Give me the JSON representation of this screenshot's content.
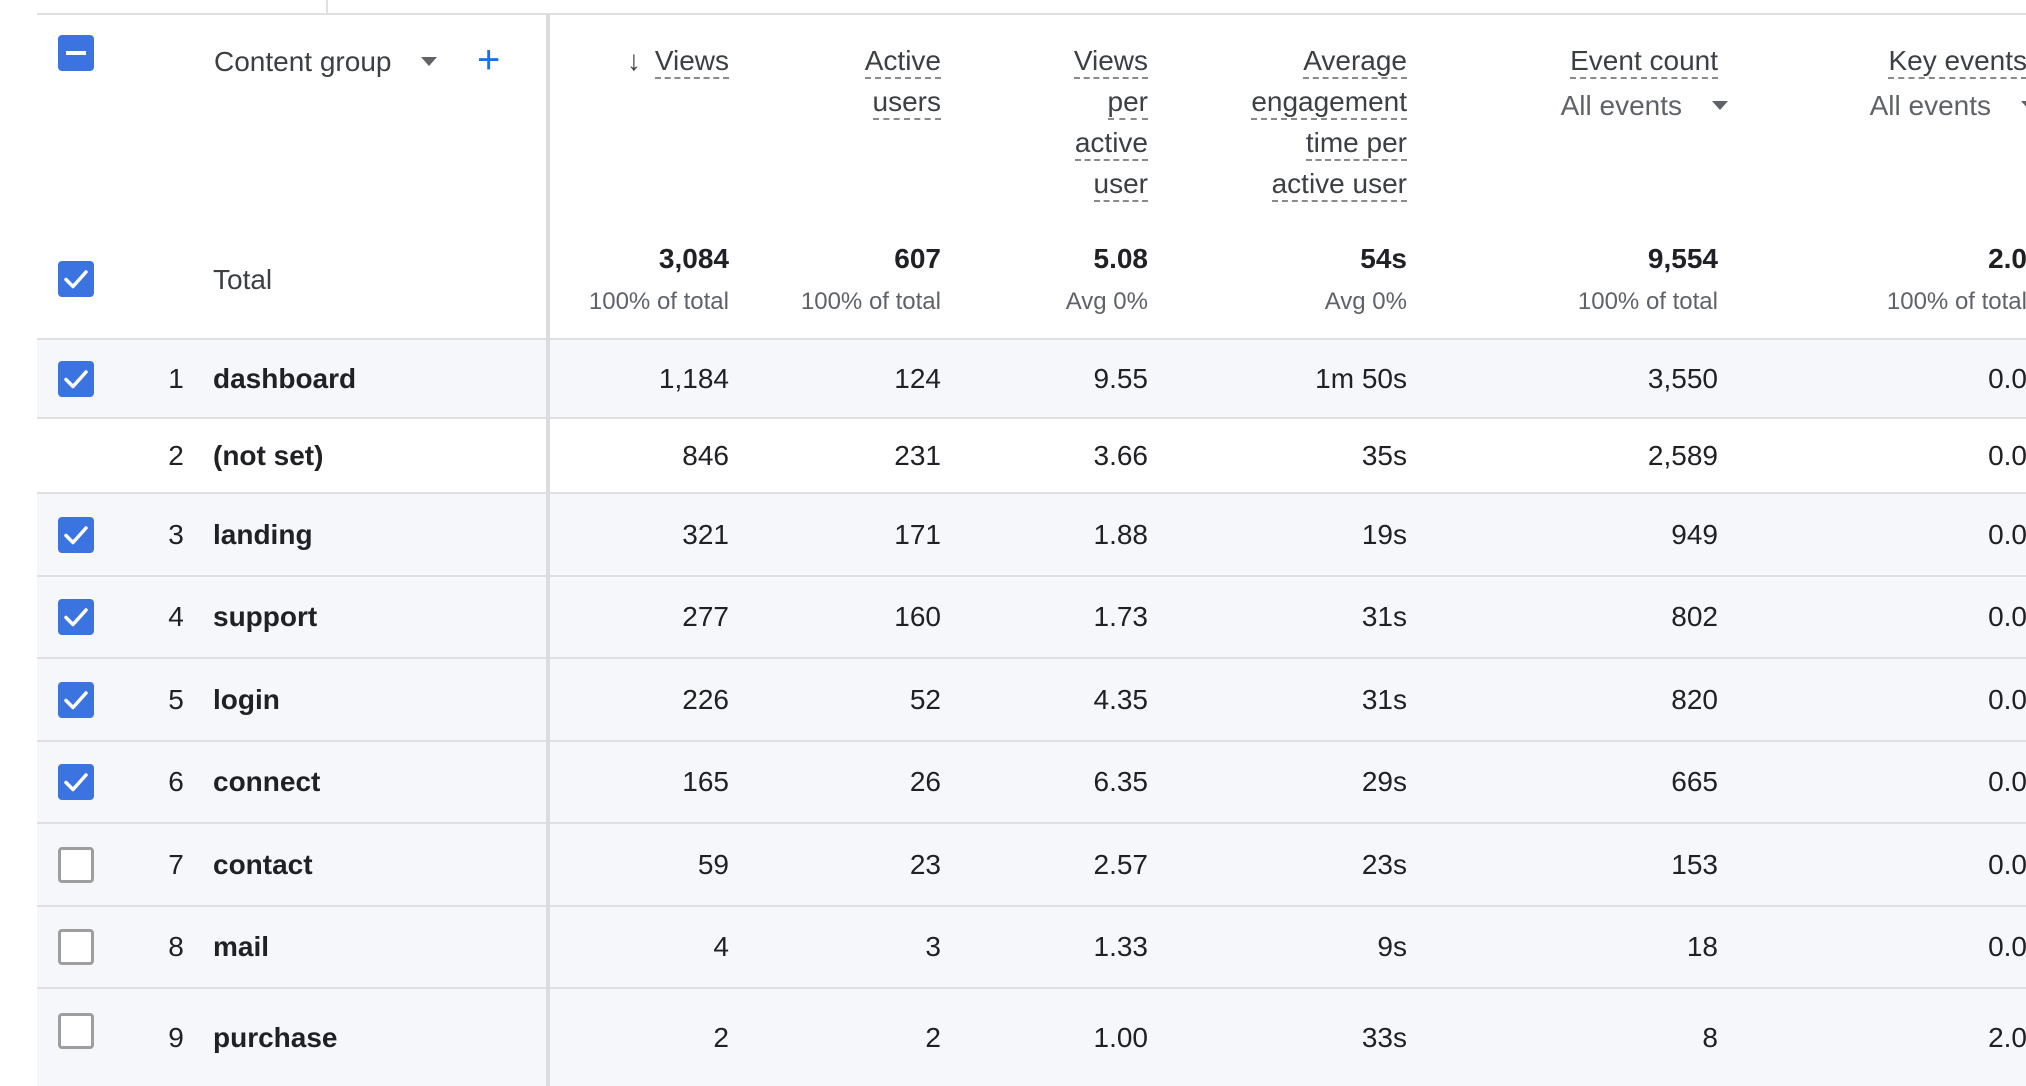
{
  "header": {
    "dimension_label": "Content group",
    "add_label": "+",
    "columns": [
      {
        "lines": [
          "Views"
        ],
        "sort_arrow": "↓"
      },
      {
        "lines": [
          "Active",
          "users"
        ]
      },
      {
        "lines": [
          "Views",
          "per",
          "active",
          "user"
        ]
      },
      {
        "lines": [
          "Average",
          "engagement",
          "time per",
          "active user"
        ]
      },
      {
        "lines": [
          "Event count"
        ],
        "sub": "All events"
      },
      {
        "lines": [
          "Key events"
        ],
        "sub": "All events"
      }
    ]
  },
  "total": {
    "label": "Total",
    "values": [
      "3,084",
      "607",
      "5.08",
      "54s",
      "9,554",
      "2.0"
    ],
    "subs": [
      "100% of total",
      "100% of total",
      "Avg 0%",
      "Avg 0%",
      "100% of total",
      "100% of total"
    ]
  },
  "rows": [
    {
      "rank": "1",
      "name": "dashboard",
      "checked": true,
      "values": [
        "1,184",
        "124",
        "9.55",
        "1m 50s",
        "3,550",
        "0.0"
      ]
    },
    {
      "rank": "2",
      "name": "(not set)",
      "checked": null,
      "values": [
        "846",
        "231",
        "3.66",
        "35s",
        "2,589",
        "0.0"
      ]
    },
    {
      "rank": "3",
      "name": "landing",
      "checked": true,
      "values": [
        "321",
        "171",
        "1.88",
        "19s",
        "949",
        "0.0"
      ]
    },
    {
      "rank": "4",
      "name": "support",
      "checked": true,
      "values": [
        "277",
        "160",
        "1.73",
        "31s",
        "802",
        "0.0"
      ]
    },
    {
      "rank": "5",
      "name": "login",
      "checked": true,
      "values": [
        "226",
        "52",
        "4.35",
        "31s",
        "820",
        "0.0"
      ]
    },
    {
      "rank": "6",
      "name": "connect",
      "checked": true,
      "values": [
        "165",
        "26",
        "6.35",
        "29s",
        "665",
        "0.0"
      ]
    },
    {
      "rank": "7",
      "name": "contact",
      "checked": false,
      "values": [
        "59",
        "23",
        "2.57",
        "23s",
        "153",
        "0.0"
      ]
    },
    {
      "rank": "8",
      "name": "mail",
      "checked": false,
      "values": [
        "4",
        "3",
        "1.33",
        "9s",
        "18",
        "0.0"
      ]
    },
    {
      "rank": "9",
      "name": "purchase",
      "checked": false,
      "values": [
        "2",
        "2",
        "1.00",
        "33s",
        "8",
        "2.0"
      ]
    }
  ],
  "colors": {
    "checkbox_blue": "#3b73e0",
    "add_blue": "#1a73e8",
    "row_shade": "#f5f7fa"
  },
  "icons": [
    "select-all-indeterminate-icon",
    "checkbox-checked-icon",
    "checkbox-empty-icon",
    "dropdown-caret-icon",
    "add-dimension-icon",
    "sort-descending-icon"
  ]
}
